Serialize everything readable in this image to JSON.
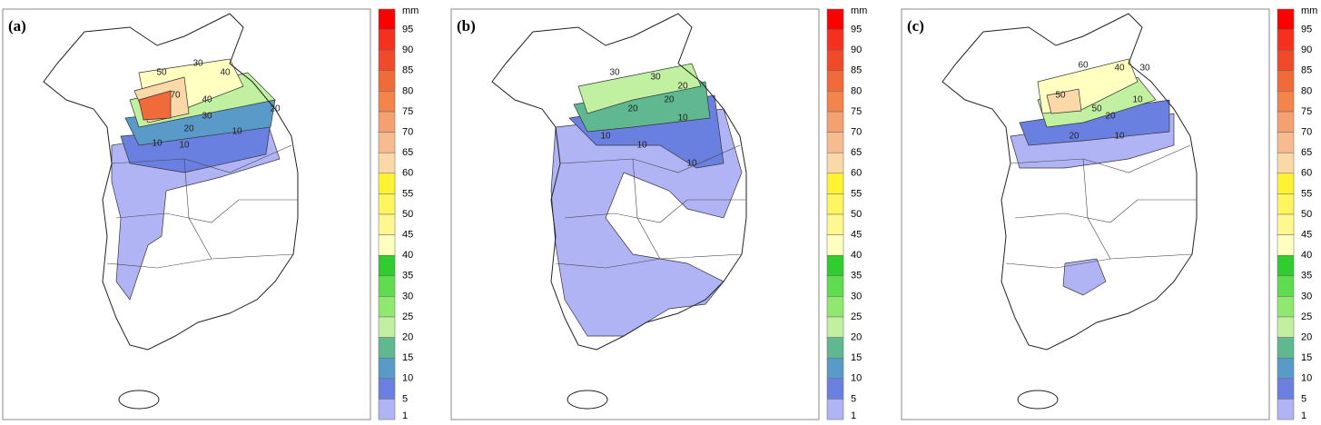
{
  "panels": [
    {
      "label": "(a)",
      "contour_labels": [
        50,
        30,
        40,
        70,
        40,
        30,
        20,
        10,
        20,
        10,
        10
      ]
    },
    {
      "label": "(b)",
      "contour_labels": [
        30,
        30,
        20,
        20,
        20,
        10,
        10,
        10,
        10
      ]
    },
    {
      "label": "(c)",
      "contour_labels": [
        60,
        40,
        30,
        50,
        50,
        20,
        20,
        10,
        10
      ]
    }
  ],
  "colorbar": {
    "unit": "mm",
    "levels": [
      95,
      90,
      85,
      80,
      75,
      70,
      65,
      60,
      55,
      50,
      45,
      40,
      35,
      30,
      25,
      20,
      15,
      10,
      5,
      1
    ],
    "colors": [
      "#ff0000",
      "#f5301e",
      "#f04a2a",
      "#f06a3a",
      "#f2844c",
      "#f5a070",
      "#f7bb90",
      "#fbd8a8",
      "#fff230",
      "#fff560",
      "#fff890",
      "#ffffc0",
      "#30cc30",
      "#60dc50",
      "#90e870",
      "#c0f0a0",
      "#60b890",
      "#5a9ac8",
      "#6a80e0",
      "#b0b4f4"
    ]
  }
}
